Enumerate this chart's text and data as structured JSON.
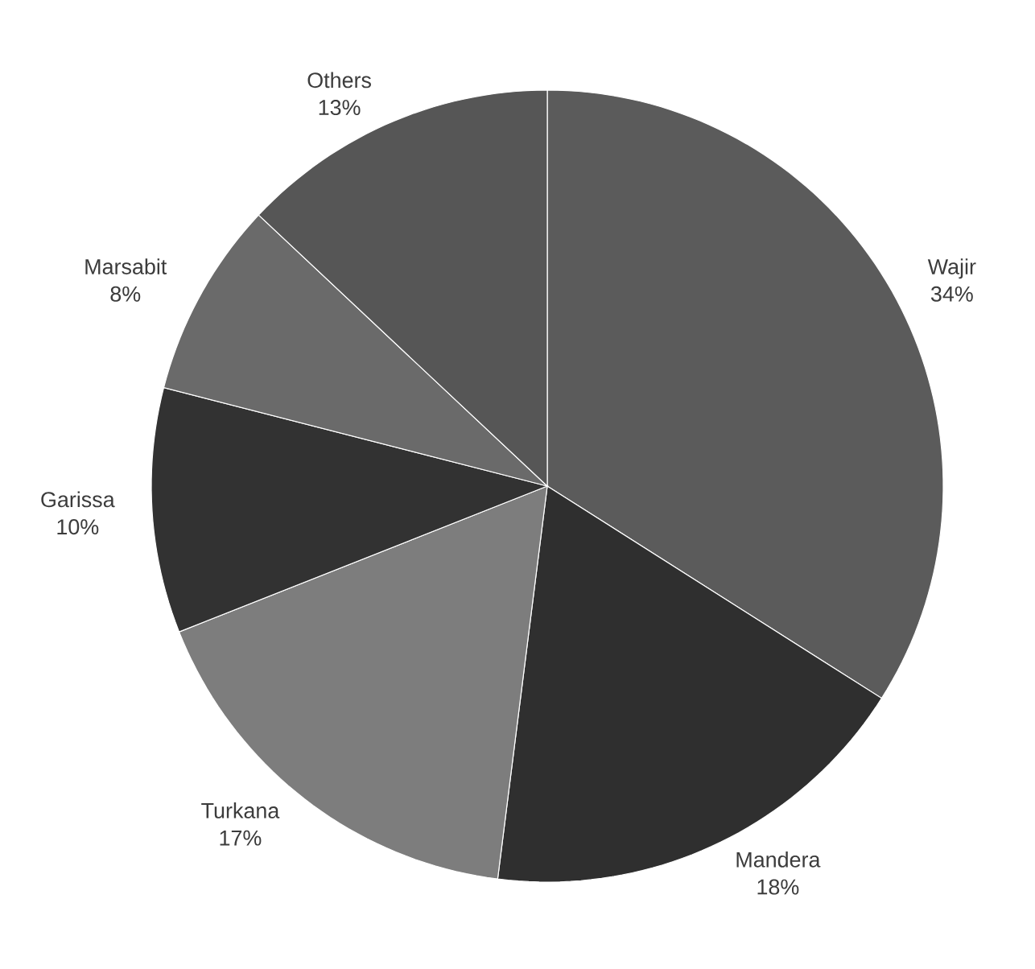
{
  "chart_data": {
    "type": "pie",
    "categories": [
      "Wajir",
      "Mandera",
      "Turkana",
      "Garissa",
      "Marsabit",
      "Others"
    ],
    "values": [
      34,
      18,
      17,
      10,
      8,
      13
    ],
    "value_labels": [
      "34%",
      "18%",
      "17%",
      "10%",
      "8%",
      "13%"
    ],
    "colors": [
      "#5b5b5b",
      "#2f2f2f",
      "#7d7d7d",
      "#323232",
      "#6a6a6a",
      "#565656"
    ]
  }
}
